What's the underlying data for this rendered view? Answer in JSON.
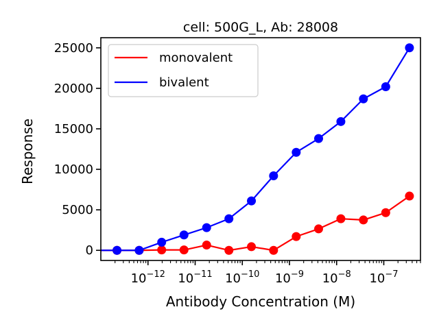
{
  "chart_data": {
    "type": "line",
    "title": "cell: 500G_L, Ab: 28008",
    "xlabel": "Antibody Concentration (M)",
    "ylabel": "Response",
    "xscale": "log",
    "xlim": [
      1e-13,
      6e-07
    ],
    "ylim": [
      -1250,
      26250
    ],
    "yticks": [
      0,
      5000,
      10000,
      15000,
      20000,
      25000
    ],
    "xticks": [
      1e-12,
      1e-11,
      1e-10,
      1e-09,
      1e-08,
      1e-07
    ],
    "xtick_base": "10",
    "xtick_exponents": [
      "−12",
      "−11",
      "−10",
      "−9",
      "−8",
      "−7"
    ],
    "legend_position": "upper-left",
    "grid": false,
    "x": [
      2.2e-13,
      6.5e-13,
      1.95e-12,
      5.8e-12,
      1.75e-11,
      5.2e-11,
      1.56e-10,
      4.6e-10,
      1.39e-09,
      4.15e-09,
      1.23e-08,
      3.7e-08,
      1.1e-07,
      3.5e-07
    ],
    "series": [
      {
        "name": "monovalent",
        "color": "#ff0000",
        "values": [
          0,
          0,
          50,
          50,
          650,
          0,
          450,
          0,
          1700,
          2650,
          3900,
          3750,
          4650,
          6700
        ]
      },
      {
        "name": "bivalent",
        "color": "#0000ff",
        "values": [
          0,
          0,
          1000,
          1900,
          2800,
          3900,
          6100,
          9200,
          12100,
          13800,
          15900,
          18700,
          20200,
          25000
        ]
      }
    ]
  }
}
